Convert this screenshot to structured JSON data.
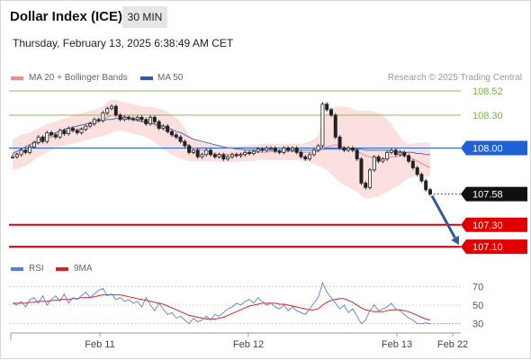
{
  "header": {
    "title": "Dollar Index (ICE)",
    "timeframe": "30 MIN",
    "datetime": "Thursday, February 13, 2025 6:38:49 AM CET"
  },
  "legend": {
    "items": [
      {
        "label": "MA 20 + Bollinger Bands",
        "color": "#f08a8a"
      },
      {
        "label": "MA 50",
        "color": "#2e5aa8"
      }
    ],
    "credit": "Research © 2025 Trading Central"
  },
  "rsi_legend": {
    "items": [
      {
        "label": "RSI",
        "color": "#5a7fd8"
      },
      {
        "label": "9MA",
        "color": "#e02020"
      }
    ]
  },
  "chart_data": [
    {
      "type": "candlestick",
      "title": "Dollar Index (ICE)",
      "x_tick_labels": [
        "Feb 11",
        "Feb 12",
        "Feb 13",
        "Feb 22"
      ],
      "ylim": [
        106.97,
        108.57
      ],
      "y_levels": [
        {
          "value": 108.52,
          "label": "108.52",
          "style": "resistance",
          "color": "#7cb342"
        },
        {
          "value": 108.3,
          "label": "108.30",
          "style": "resistance",
          "color": "#7cb342"
        },
        {
          "value": 108.0,
          "label": "108.00",
          "style": "pivot",
          "color": "#1e60d6"
        },
        {
          "value": 107.58,
          "label": "107.58",
          "style": "last",
          "color": "#111111"
        },
        {
          "value": 107.3,
          "label": "107.30",
          "style": "support",
          "color": "#e00000"
        },
        {
          "value": 107.1,
          "label": "107.10",
          "style": "support",
          "color": "#e00000"
        }
      ],
      "close": [
        107.92,
        107.94,
        107.98,
        107.96,
        108.01,
        108.05,
        108.1,
        108.06,
        108.14,
        108.12,
        108.1,
        108.16,
        108.13,
        108.18,
        108.16,
        108.14,
        108.17,
        108.2,
        108.22,
        108.26,
        108.25,
        108.32,
        108.36,
        108.38,
        108.3,
        108.26,
        108.28,
        108.27,
        108.26,
        108.28,
        108.26,
        108.22,
        108.28,
        108.24,
        108.18,
        108.2,
        108.15,
        108.12,
        108.1,
        108.06,
        108.02,
        107.96,
        107.98,
        107.92,
        107.94,
        107.98,
        107.94,
        107.92,
        107.94,
        107.9,
        107.92,
        107.94,
        107.93,
        107.94,
        107.96,
        107.95,
        107.97,
        107.99,
        107.98,
        108.0,
        108.0,
        107.97,
        107.96,
        108.0,
        107.98,
        108.0,
        107.96,
        107.92,
        107.9,
        107.94,
        107.98,
        108.02,
        108.4,
        108.35,
        108.3,
        108.1,
        108.0,
        107.98,
        108.0,
        107.98,
        107.9,
        107.68,
        107.64,
        107.8,
        107.92,
        107.88,
        107.9,
        107.96,
        107.98,
        107.94,
        107.96,
        107.93,
        107.88,
        107.82,
        107.76,
        107.7,
        107.62,
        107.58
      ],
      "ma20": [
        107.94,
        107.95,
        107.96,
        107.98,
        108.0,
        108.03,
        108.05,
        108.07,
        108.09,
        108.1,
        108.11,
        108.13,
        108.14,
        108.15,
        108.16,
        108.17,
        108.18,
        108.19,
        108.21,
        108.22,
        108.24,
        108.26,
        108.28,
        108.3,
        108.3,
        108.3,
        108.29,
        108.28,
        108.27,
        108.26,
        108.25,
        108.24,
        108.23,
        108.21,
        108.19,
        108.17,
        108.15,
        108.12,
        108.1,
        108.07,
        108.04,
        108.02,
        108.0,
        107.99,
        107.98,
        107.97,
        107.96,
        107.95,
        107.94,
        107.94,
        107.94,
        107.94,
        107.94,
        107.95,
        107.95,
        107.95,
        107.96,
        107.96,
        107.96,
        107.96,
        107.97,
        107.97,
        107.97,
        107.97,
        107.97,
        107.97,
        107.97,
        107.96,
        107.96,
        107.96,
        107.96,
        107.97,
        108.0,
        108.01,
        108.02,
        108.03,
        108.02,
        108.01,
        108.0,
        107.99,
        107.97,
        107.95,
        107.93,
        107.92,
        107.91,
        107.9,
        107.9,
        107.91,
        107.92,
        107.92,
        107.93,
        107.93,
        107.92,
        107.9,
        107.88,
        107.86,
        107.84,
        107.82
      ],
      "ma50": [
        107.95,
        107.97,
        107.99,
        108.01,
        108.03,
        108.05,
        108.07,
        108.09,
        108.11,
        108.12,
        108.14,
        108.15,
        108.17,
        108.18,
        108.19,
        108.2,
        108.21,
        108.22,
        108.23,
        108.24,
        108.25,
        108.25,
        108.26,
        108.26,
        108.27,
        108.27,
        108.27,
        108.26,
        108.26,
        108.25,
        108.24,
        108.24,
        108.23,
        108.22,
        108.21,
        108.2,
        108.18,
        108.17,
        108.15,
        108.14,
        108.12,
        108.1,
        108.08,
        108.07,
        108.06,
        108.05,
        108.04,
        108.03,
        108.02,
        108.01,
        108.0,
        108.0,
        107.99,
        107.99,
        107.98,
        107.98,
        107.98,
        107.98,
        107.98,
        107.98,
        107.98,
        107.98,
        107.98,
        107.98,
        107.98,
        107.98,
        107.98,
        107.98,
        107.98,
        107.98,
        107.98,
        107.98,
        107.99,
        107.99,
        107.99,
        107.99,
        107.99,
        107.99,
        107.99,
        107.99,
        107.99,
        107.99,
        107.98,
        107.98,
        107.98,
        107.98,
        107.98,
        107.98,
        107.97,
        107.97,
        107.97,
        107.96,
        107.96,
        107.96,
        107.95,
        107.95,
        107.94,
        107.94
      ],
      "band_upper": [
        108.08,
        108.1,
        108.12,
        108.13,
        108.14,
        108.16,
        108.18,
        108.2,
        108.22,
        108.23,
        108.24,
        108.26,
        108.27,
        108.28,
        108.3,
        108.31,
        108.32,
        108.33,
        108.34,
        108.35,
        108.36,
        108.38,
        108.42,
        108.44,
        108.44,
        108.43,
        108.42,
        108.41,
        108.4,
        108.39,
        108.38,
        108.38,
        108.38,
        108.37,
        108.36,
        108.35,
        108.33,
        108.3,
        108.28,
        108.24,
        108.18,
        108.12,
        108.08,
        108.06,
        108.05,
        108.04,
        108.03,
        108.03,
        108.02,
        108.02,
        108.02,
        108.02,
        108.01,
        108.02,
        108.02,
        108.03,
        108.03,
        108.03,
        108.04,
        108.04,
        108.04,
        108.04,
        108.04,
        108.04,
        108.04,
        108.04,
        108.04,
        108.04,
        108.05,
        108.06,
        108.08,
        108.12,
        108.26,
        108.32,
        108.36,
        108.38,
        108.38,
        108.38,
        108.37,
        108.36,
        108.34,
        108.34,
        108.34,
        108.34,
        108.33,
        108.32,
        108.3,
        108.26,
        108.22,
        108.16,
        108.1,
        108.06,
        108.04,
        108.04,
        108.05,
        108.05,
        108.05,
        108.05
      ],
      "band_lower": [
        107.8,
        107.81,
        107.82,
        107.84,
        107.86,
        107.89,
        107.92,
        107.94,
        107.96,
        107.98,
        108.0,
        108.01,
        108.02,
        108.03,
        108.04,
        108.05,
        108.06,
        108.07,
        108.08,
        108.09,
        108.1,
        108.11,
        108.12,
        108.14,
        108.16,
        108.16,
        108.15,
        108.14,
        108.13,
        108.12,
        108.11,
        108.1,
        108.08,
        108.05,
        108.02,
        107.99,
        107.96,
        107.94,
        107.92,
        107.9,
        107.89,
        107.88,
        107.88,
        107.88,
        107.88,
        107.88,
        107.88,
        107.88,
        107.87,
        107.87,
        107.87,
        107.87,
        107.87,
        107.88,
        107.88,
        107.88,
        107.88,
        107.89,
        107.89,
        107.89,
        107.89,
        107.89,
        107.89,
        107.89,
        107.89,
        107.89,
        107.89,
        107.88,
        107.88,
        107.87,
        107.86,
        107.84,
        107.82,
        107.8,
        107.76,
        107.72,
        107.69,
        107.66,
        107.64,
        107.62,
        107.6,
        107.56,
        107.54,
        107.54,
        107.55,
        107.56,
        107.58,
        107.6,
        107.62,
        107.64,
        107.66,
        107.7,
        107.72,
        107.74,
        107.74,
        107.74,
        107.74,
        107.74
      ]
    },
    {
      "type": "line",
      "x_tick_labels": [
        "Feb 11",
        "Feb 12",
        "Feb 13",
        "Feb 22"
      ],
      "ylim": [
        22,
        78
      ],
      "y_ticks": [
        70,
        50,
        30
      ],
      "series": [
        {
          "name": "RSI",
          "color": "#5a7fd8",
          "values": [
            52,
            50,
            54,
            48,
            56,
            58,
            52,
            60,
            50,
            56,
            60,
            54,
            62,
            52,
            58,
            56,
            60,
            64,
            58,
            62,
            66,
            68,
            60,
            62,
            56,
            58,
            54,
            56,
            52,
            54,
            48,
            58,
            50,
            44,
            52,
            46,
            40,
            42,
            36,
            38,
            34,
            30,
            36,
            32,
            34,
            38,
            34,
            40,
            38,
            42,
            46,
            48,
            52,
            50,
            54,
            56,
            52,
            58,
            54,
            50,
            52,
            48,
            46,
            50,
            44,
            48,
            44,
            42,
            40,
            46,
            52,
            58,
            74,
            64,
            58,
            52,
            46,
            50,
            42,
            46,
            38,
            30,
            34,
            44,
            50,
            44,
            46,
            48,
            52,
            46,
            44,
            40,
            36,
            34,
            30,
            30,
            31,
            30
          ]
        },
        {
          "name": "9MA",
          "color": "#e02020",
          "values": [
            52,
            52,
            52,
            52,
            53,
            53,
            54,
            54,
            54,
            55,
            55,
            56,
            56,
            56,
            57,
            57,
            58,
            58,
            58,
            59,
            60,
            61,
            61,
            61,
            61,
            61,
            60,
            59,
            58,
            57,
            56,
            55,
            54,
            53,
            52,
            51,
            49,
            47,
            45,
            43,
            41,
            39,
            38,
            37,
            36,
            35,
            35,
            35,
            36,
            37,
            39,
            41,
            43,
            45,
            47,
            49,
            50,
            51,
            52,
            52,
            52,
            52,
            51,
            51,
            50,
            49,
            48,
            47,
            46,
            45,
            45,
            46,
            50,
            53,
            55,
            56,
            57,
            57,
            55,
            53,
            50,
            47,
            45,
            44,
            43,
            43,
            43,
            44,
            45,
            45,
            45,
            44,
            43,
            41,
            39,
            37,
            35,
            34
          ]
        }
      ]
    }
  ]
}
